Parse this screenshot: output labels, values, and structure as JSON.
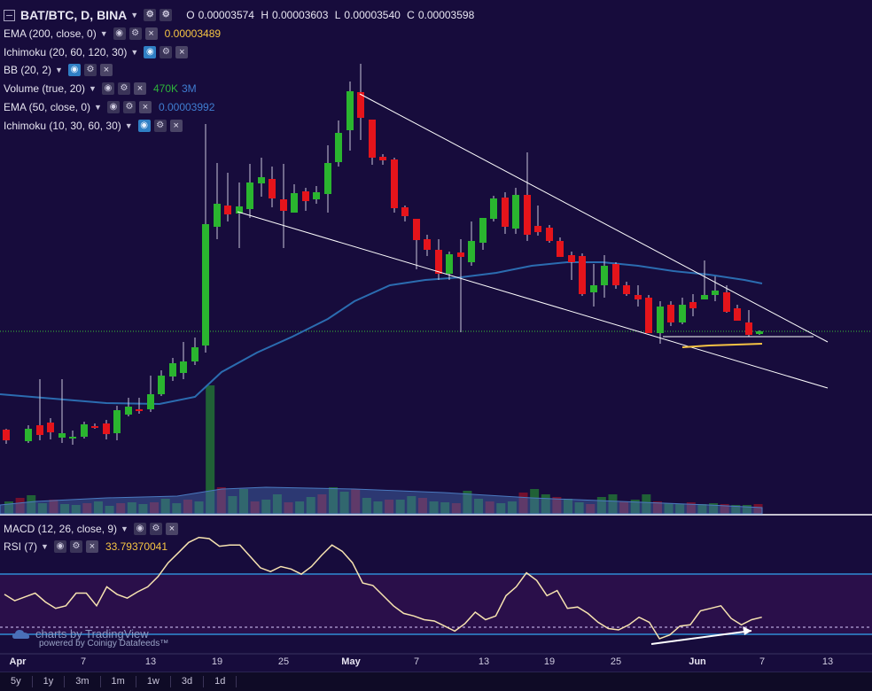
{
  "legend": {
    "symbol": "BAT/BTC, D, BINA",
    "ohlc": {
      "o_label": "O",
      "o": "0.00003574",
      "h_label": "H",
      "h": "0.00003603",
      "l_label": "L",
      "l": "0.00003540",
      "c_label": "C",
      "c": "0.00003598"
    },
    "ema200": {
      "label": "EMA (200, close, 0)",
      "value": "0.00003489"
    },
    "ichimoku1": {
      "label": "Ichimoku (20, 60, 120, 30)"
    },
    "bb": {
      "label": "BB (20, 2)"
    },
    "volume": {
      "label": "Volume (true, 20)",
      "value1": "470K",
      "value2": "3M"
    },
    "ema50": {
      "label": "EMA (50, close, 0)",
      "value": "0.00003992"
    },
    "ichimoku2": {
      "label": "Ichimoku (10, 30, 60, 30)"
    },
    "macd": {
      "label": "MACD (12, 26, close, 9)"
    },
    "rsi": {
      "label": "RSI (7)",
      "value": "33.79370041"
    }
  },
  "watermark": {
    "main": "charts by TradingView",
    "sub": "powered by Coinigy Datafeeds™"
  },
  "xaxis": [
    {
      "label": "Apr",
      "bold": true
    },
    {
      "label": "7"
    },
    {
      "label": "13"
    },
    {
      "label": "19"
    },
    {
      "label": "25"
    },
    {
      "label": "May",
      "bold": true
    },
    {
      "label": "7"
    },
    {
      "label": "13"
    },
    {
      "label": "19"
    },
    {
      "label": "25"
    },
    {
      "label": "Jun",
      "bold": true
    },
    {
      "label": "7"
    },
    {
      "label": "13"
    }
  ],
  "ranges": [
    "5y",
    "1y",
    "3m",
    "1m",
    "1w",
    "3d",
    "1d"
  ],
  "colors": {
    "background": "#170c3c",
    "up": "#2ab52f",
    "down": "#e5141b",
    "ema": "#2b6cb0",
    "rsi": "#f7e3b0",
    "macd_zone": "#2a0f4a",
    "trend": "#ffffff",
    "gold": "#f6c444"
  },
  "chart_data": {
    "type": "candlestick",
    "rsi_values": [
      42,
      37,
      40,
      43,
      36,
      31,
      33,
      43,
      43,
      33,
      48,
      42,
      39,
      44,
      48,
      56,
      67,
      75,
      83,
      87,
      86,
      80,
      81,
      81,
      72,
      63,
      60,
      64,
      62,
      58,
      64,
      73,
      81,
      76,
      67,
      51,
      49,
      41,
      33,
      27,
      25,
      22,
      21,
      17,
      13,
      19,
      28,
      22,
      25,
      41,
      48,
      59,
      53,
      41,
      45,
      31,
      32,
      27,
      20,
      15,
      14,
      18,
      24,
      20,
      7,
      10,
      17,
      18,
      29,
      31,
      33,
      23,
      18,
      22,
      24
    ],
    "macd_values": [
      48,
      44,
      47,
      48,
      43,
      33,
      38,
      47,
      47,
      41,
      52,
      50,
      46,
      51,
      56,
      66,
      71,
      76,
      80,
      84,
      81,
      77,
      79,
      80,
      74,
      64,
      59,
      64,
      60,
      56,
      62,
      70,
      78,
      76,
      69,
      55,
      50,
      44,
      37,
      32,
      31,
      27,
      26,
      22,
      18,
      23,
      32,
      27,
      29,
      43,
      49,
      60,
      55,
      45,
      48,
      36,
      37,
      31,
      25,
      21,
      20,
      23,
      29,
      25,
      14,
      16,
      22,
      24,
      32,
      34,
      36,
      28,
      24,
      27,
      28
    ]
  }
}
